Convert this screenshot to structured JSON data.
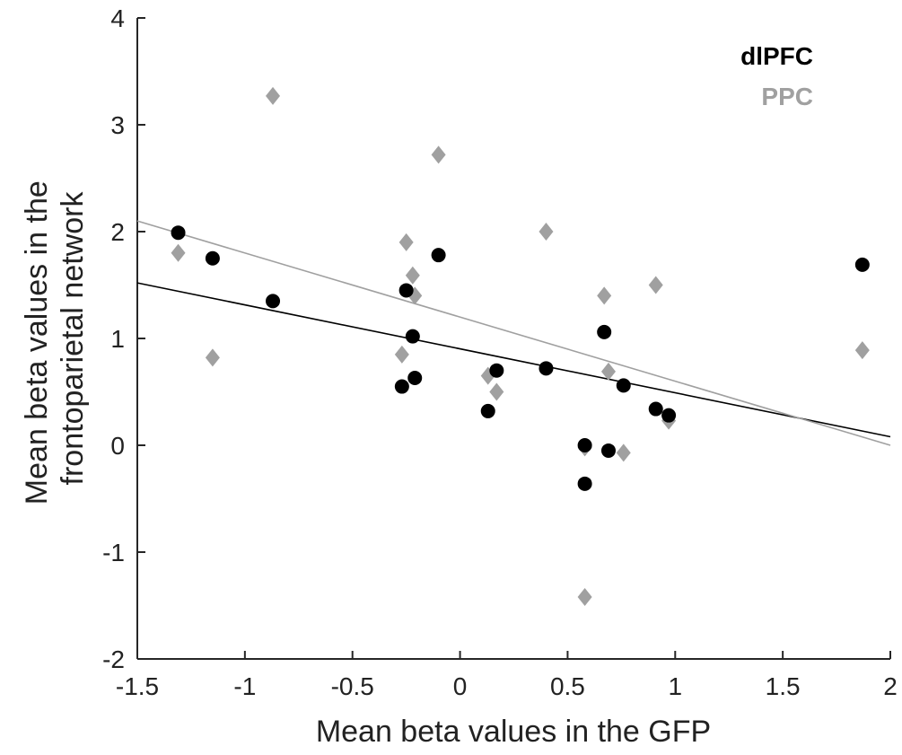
{
  "chart_data": {
    "type": "scatter",
    "title": "",
    "xlabel": "Mean beta values in the GFP",
    "ylabel": [
      "Mean beta values in the",
      "frontoparietal network"
    ],
    "xlim": [
      -1.5,
      2
    ],
    "ylim": [
      -2,
      4
    ],
    "xticks": [
      -1.5,
      -1,
      -0.5,
      0,
      0.5,
      1,
      1.5,
      2
    ],
    "xtick_labels": [
      "-1.5",
      "-1",
      "-0.5",
      "0",
      "0.5",
      "1",
      "1.5",
      "2"
    ],
    "yticks": [
      -2,
      -1,
      0,
      1,
      2,
      3,
      4
    ],
    "ytick_labels": [
      "-2",
      "-1",
      "0",
      "1",
      "2",
      "3",
      "4"
    ],
    "grid": false,
    "legend_position": "top-right",
    "series": [
      {
        "name": "dlPFC",
        "marker": "circle",
        "color": "#000000",
        "points": [
          [
            -1.31,
            1.99
          ],
          [
            -1.15,
            1.75
          ],
          [
            -0.87,
            1.35
          ],
          [
            -0.27,
            0.55
          ],
          [
            -0.25,
            1.45
          ],
          [
            -0.22,
            1.02
          ],
          [
            -0.21,
            0.63
          ],
          [
            -0.1,
            1.78
          ],
          [
            0.13,
            0.32
          ],
          [
            0.17,
            0.7
          ],
          [
            0.4,
            0.72
          ],
          [
            0.58,
            0.0
          ],
          [
            0.58,
            -0.36
          ],
          [
            0.67,
            1.06
          ],
          [
            0.69,
            -0.05
          ],
          [
            0.76,
            0.56
          ],
          [
            0.91,
            0.34
          ],
          [
            0.97,
            0.28
          ],
          [
            1.87,
            1.69
          ]
        ],
        "fit": {
          "x": [
            -1.5,
            2
          ],
          "y": [
            1.52,
            0.08
          ]
        }
      },
      {
        "name": "PPC",
        "marker": "diamond",
        "color": "#a0a0a0",
        "points": [
          [
            -1.31,
            1.8
          ],
          [
            -1.15,
            0.82
          ],
          [
            -0.87,
            3.27
          ],
          [
            -0.27,
            0.85
          ],
          [
            -0.25,
            1.9
          ],
          [
            -0.22,
            1.59
          ],
          [
            -0.21,
            1.4
          ],
          [
            -0.1,
            2.72
          ],
          [
            0.13,
            0.65
          ],
          [
            0.17,
            0.5
          ],
          [
            0.4,
            2.0
          ],
          [
            0.58,
            -0.02
          ],
          [
            0.58,
            -1.42
          ],
          [
            0.67,
            1.4
          ],
          [
            0.69,
            0.69
          ],
          [
            0.76,
            -0.07
          ],
          [
            0.91,
            1.5
          ],
          [
            0.97,
            0.23
          ],
          [
            1.87,
            0.89
          ]
        ],
        "fit": {
          "x": [
            -1.5,
            2
          ],
          "y": [
            2.1,
            0.0
          ]
        }
      }
    ]
  }
}
